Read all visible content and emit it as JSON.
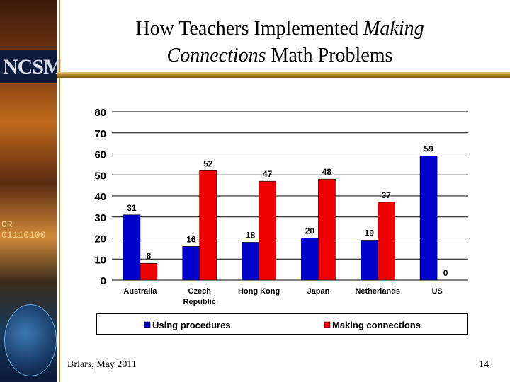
{
  "slide": {
    "title_part1": "How Teachers Implemented ",
    "title_italic1": "Making",
    "title_italic2": "Connections",
    "title_part2": " Math Problems",
    "footer_left": "Briars, May 2011",
    "page_number": "14"
  },
  "sidebar": {
    "logo_text": "NCSM",
    "binary_text": "OR 01110100"
  },
  "colors": {
    "series1": "#0000cc",
    "series2": "#ee0000",
    "accent_gold": "#b8892f"
  },
  "chart_data": {
    "type": "bar",
    "categories": [
      "Australia",
      "Czech Republic",
      "Hong Kong",
      "Japan",
      "Netherlands",
      "US"
    ],
    "category_lines": [
      [
        "Australia"
      ],
      [
        "Czech",
        "Republic"
      ],
      [
        "Hong Kong"
      ],
      [
        "Japan"
      ],
      [
        "Netherlands"
      ],
      [
        "US"
      ]
    ],
    "series": [
      {
        "name": "Using procedures",
        "values": [
          31,
          16,
          18,
          20,
          19,
          59
        ]
      },
      {
        "name": "Making connections",
        "values": [
          8,
          52,
          47,
          48,
          37,
          0
        ]
      }
    ],
    "ylim": [
      0,
      80
    ],
    "yticks": [
      0,
      10,
      20,
      30,
      40,
      50,
      60,
      70,
      80
    ],
    "grid": true,
    "data_labels": true,
    "legend_position": "bottom"
  }
}
